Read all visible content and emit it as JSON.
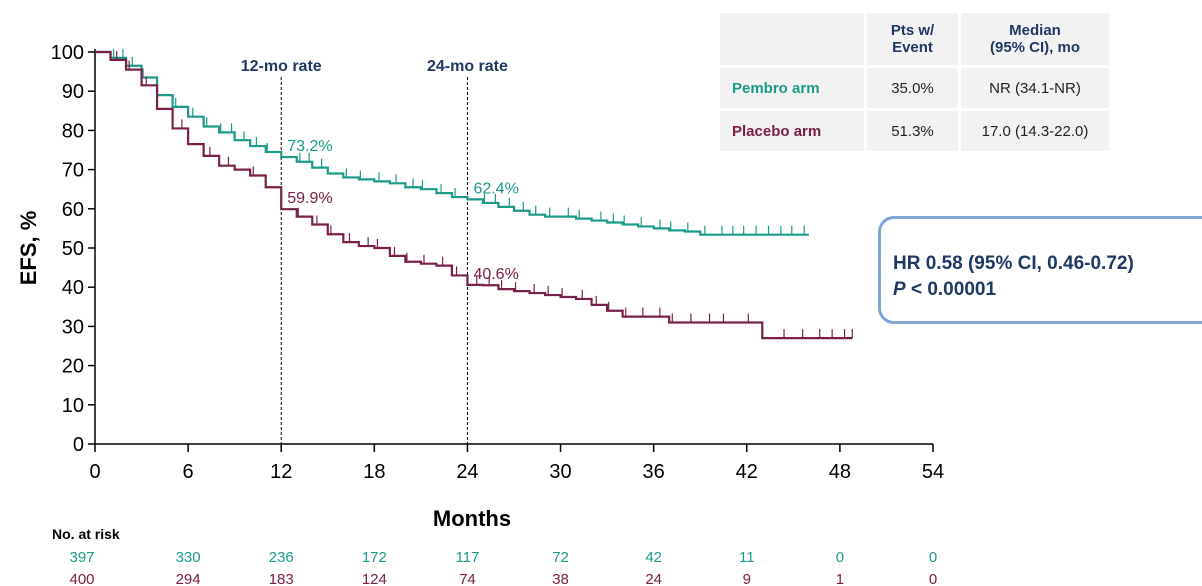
{
  "chart_data": {
    "type": "line",
    "xlabel": "Months",
    "ylabel": "EFS, %",
    "xlim": [
      0,
      54
    ],
    "ylim": [
      0,
      100
    ],
    "x_ticks": [
      0,
      6,
      12,
      18,
      24,
      30,
      36,
      42,
      48,
      54
    ],
    "y_ticks": [
      0,
      10,
      20,
      30,
      40,
      50,
      60,
      70,
      80,
      90,
      100
    ],
    "reference_lines": [
      {
        "x": 12,
        "label": "12-mo rate"
      },
      {
        "x": 24,
        "label": "24-mo rate"
      }
    ],
    "annotations": [
      {
        "text": "73.2%",
        "x": 12,
        "y": 73.2,
        "series": "Pembro arm"
      },
      {
        "text": "62.4%",
        "x": 24,
        "y": 62.4,
        "series": "Pembro arm"
      },
      {
        "text": "59.9%",
        "x": 12,
        "y": 59.9,
        "series": "Placebo arm"
      },
      {
        "text": "40.6%",
        "x": 24,
        "y": 40.6,
        "series": "Placebo arm"
      }
    ],
    "series": [
      {
        "name": "Pembro arm",
        "color": "#1a9a8a",
        "points": [
          [
            0,
            100
          ],
          [
            1,
            98.5
          ],
          [
            2,
            96.5
          ],
          [
            3,
            93.5
          ],
          [
            4,
            89
          ],
          [
            5,
            86
          ],
          [
            6,
            83.5
          ],
          [
            7,
            81
          ],
          [
            8,
            79.5
          ],
          [
            9,
            77.5
          ],
          [
            10,
            76
          ],
          [
            11,
            74.5
          ],
          [
            12,
            73.2
          ],
          [
            13,
            72
          ],
          [
            14,
            70.5
          ],
          [
            15,
            69
          ],
          [
            16,
            68
          ],
          [
            17,
            67.5
          ],
          [
            18,
            67
          ],
          [
            19,
            66.5
          ],
          [
            20,
            65.5
          ],
          [
            21,
            65
          ],
          [
            22,
            64
          ],
          [
            23,
            63
          ],
          [
            24,
            62.4
          ],
          [
            25,
            61.5
          ],
          [
            26,
            60.5
          ],
          [
            27,
            59.5
          ],
          [
            28,
            58.5
          ],
          [
            29,
            58
          ],
          [
            30,
            58
          ],
          [
            31,
            57.5
          ],
          [
            32,
            57
          ],
          [
            33,
            56.5
          ],
          [
            34,
            56
          ],
          [
            35,
            55.5
          ],
          [
            36,
            55
          ],
          [
            37,
            54.5
          ],
          [
            38,
            54.2
          ],
          [
            39,
            53.4
          ],
          [
            41,
            53.4
          ],
          [
            43,
            53.4
          ],
          [
            46,
            53.4
          ]
        ],
        "censor_x": [
          1.2,
          1.8,
          2.4,
          3.1,
          5.2,
          6.3,
          7.2,
          8.1,
          8.8,
          9.6,
          10.4,
          11.1,
          13.2,
          13.8,
          14.6,
          16.2,
          17.1,
          18.3,
          19.4,
          20.5,
          21.1,
          22.3,
          23.2,
          25.1,
          25.8,
          26.7,
          27.6,
          28.4,
          29.3,
          30.5,
          31.2,
          32.6,
          33.4,
          34.1,
          35.2,
          36.4,
          37.1,
          38.2,
          39.3,
          40.4,
          41.1,
          41.8,
          42.6,
          43.4,
          44.2,
          44.9,
          45.7
        ]
      },
      {
        "name": "Placebo arm",
        "color": "#7a2048",
        "points": [
          [
            0,
            100
          ],
          [
            1,
            98
          ],
          [
            2,
            95.5
          ],
          [
            3,
            91.5
          ],
          [
            4,
            85.5
          ],
          [
            5,
            80.5
          ],
          [
            6,
            76.5
          ],
          [
            7,
            73.5
          ],
          [
            8,
            71
          ],
          [
            9,
            70
          ],
          [
            10,
            68.5
          ],
          [
            11,
            65.5
          ],
          [
            12,
            59.9
          ],
          [
            13,
            58
          ],
          [
            14,
            56
          ],
          [
            15,
            53.5
          ],
          [
            16,
            51.5
          ],
          [
            17,
            50.5
          ],
          [
            18,
            50
          ],
          [
            19,
            48
          ],
          [
            20,
            46.5
          ],
          [
            21,
            46
          ],
          [
            22,
            45.5
          ],
          [
            23,
            43
          ],
          [
            24,
            40.6
          ],
          [
            25,
            40.5
          ],
          [
            26,
            39.5
          ],
          [
            27,
            39
          ],
          [
            28,
            38.5
          ],
          [
            29,
            38
          ],
          [
            30,
            37.5
          ],
          [
            31,
            37
          ],
          [
            32,
            35.5
          ],
          [
            33,
            34
          ],
          [
            34,
            32.5
          ],
          [
            36,
            32.5
          ],
          [
            37,
            31
          ],
          [
            40,
            31
          ],
          [
            41,
            31
          ],
          [
            43,
            27
          ],
          [
            46,
            27
          ],
          [
            48.8,
            27
          ]
        ],
        "censor_x": [
          1.4,
          2.2,
          3.3,
          5.6,
          7.4,
          8.6,
          10.2,
          13.1,
          14.3,
          15.2,
          16.4,
          17.6,
          18.2,
          19.3,
          20.1,
          21.2,
          22.4,
          23.3,
          24.6,
          25.4,
          26.2,
          27.1,
          28.3,
          29.2,
          30.1,
          31.4,
          32.3,
          33.1,
          34.2,
          35.3,
          36.4,
          37.2,
          38.4,
          39.6,
          40.5,
          42.1,
          44.4,
          45.6,
          46.7,
          47.5,
          48.3,
          48.8
        ]
      }
    ],
    "at_risk": {
      "title": "No. at risk",
      "months": [
        0,
        6,
        12,
        18,
        24,
        30,
        36,
        42,
        48,
        54
      ],
      "rows": [
        {
          "series": "Pembro arm",
          "color": "#1a9a8a",
          "values": [
            "397",
            "330",
            "236",
            "172",
            "117",
            "72",
            "42",
            "11",
            "0",
            "0"
          ]
        },
        {
          "series": "Placebo arm",
          "color": "#7a2048",
          "values": [
            "400",
            "294",
            "183",
            "124",
            "74",
            "38",
            "24",
            "9",
            "1",
            "0"
          ]
        }
      ]
    }
  },
  "summary_table": {
    "headers": [
      "",
      "Pts w/ Event",
      "Median (95% CI), mo"
    ],
    "header_lines": [
      [
        "Pts w/",
        "Event"
      ],
      [
        "Median",
        "(95% CI), mo"
      ]
    ],
    "rows": [
      {
        "arm": "Pembro arm",
        "color": "#1a9a8a",
        "pts_event": "35.0%",
        "median": "NR (34.1-NR)"
      },
      {
        "arm": "Placebo arm",
        "color": "#7a2048",
        "pts_event": "51.3%",
        "median": "17.0 (14.3-22.0)"
      }
    ]
  },
  "hr_box": {
    "line1": "HR 0.58 (95% CI, 0.46-0.72)",
    "p_symbol": "P",
    "p_rest": " < 0.00001"
  },
  "colors": {
    "pembro": "#1a9a8a",
    "placebo": "#7a2048",
    "label_dark": "#1f3864",
    "box_border": "#7ea6d6"
  }
}
